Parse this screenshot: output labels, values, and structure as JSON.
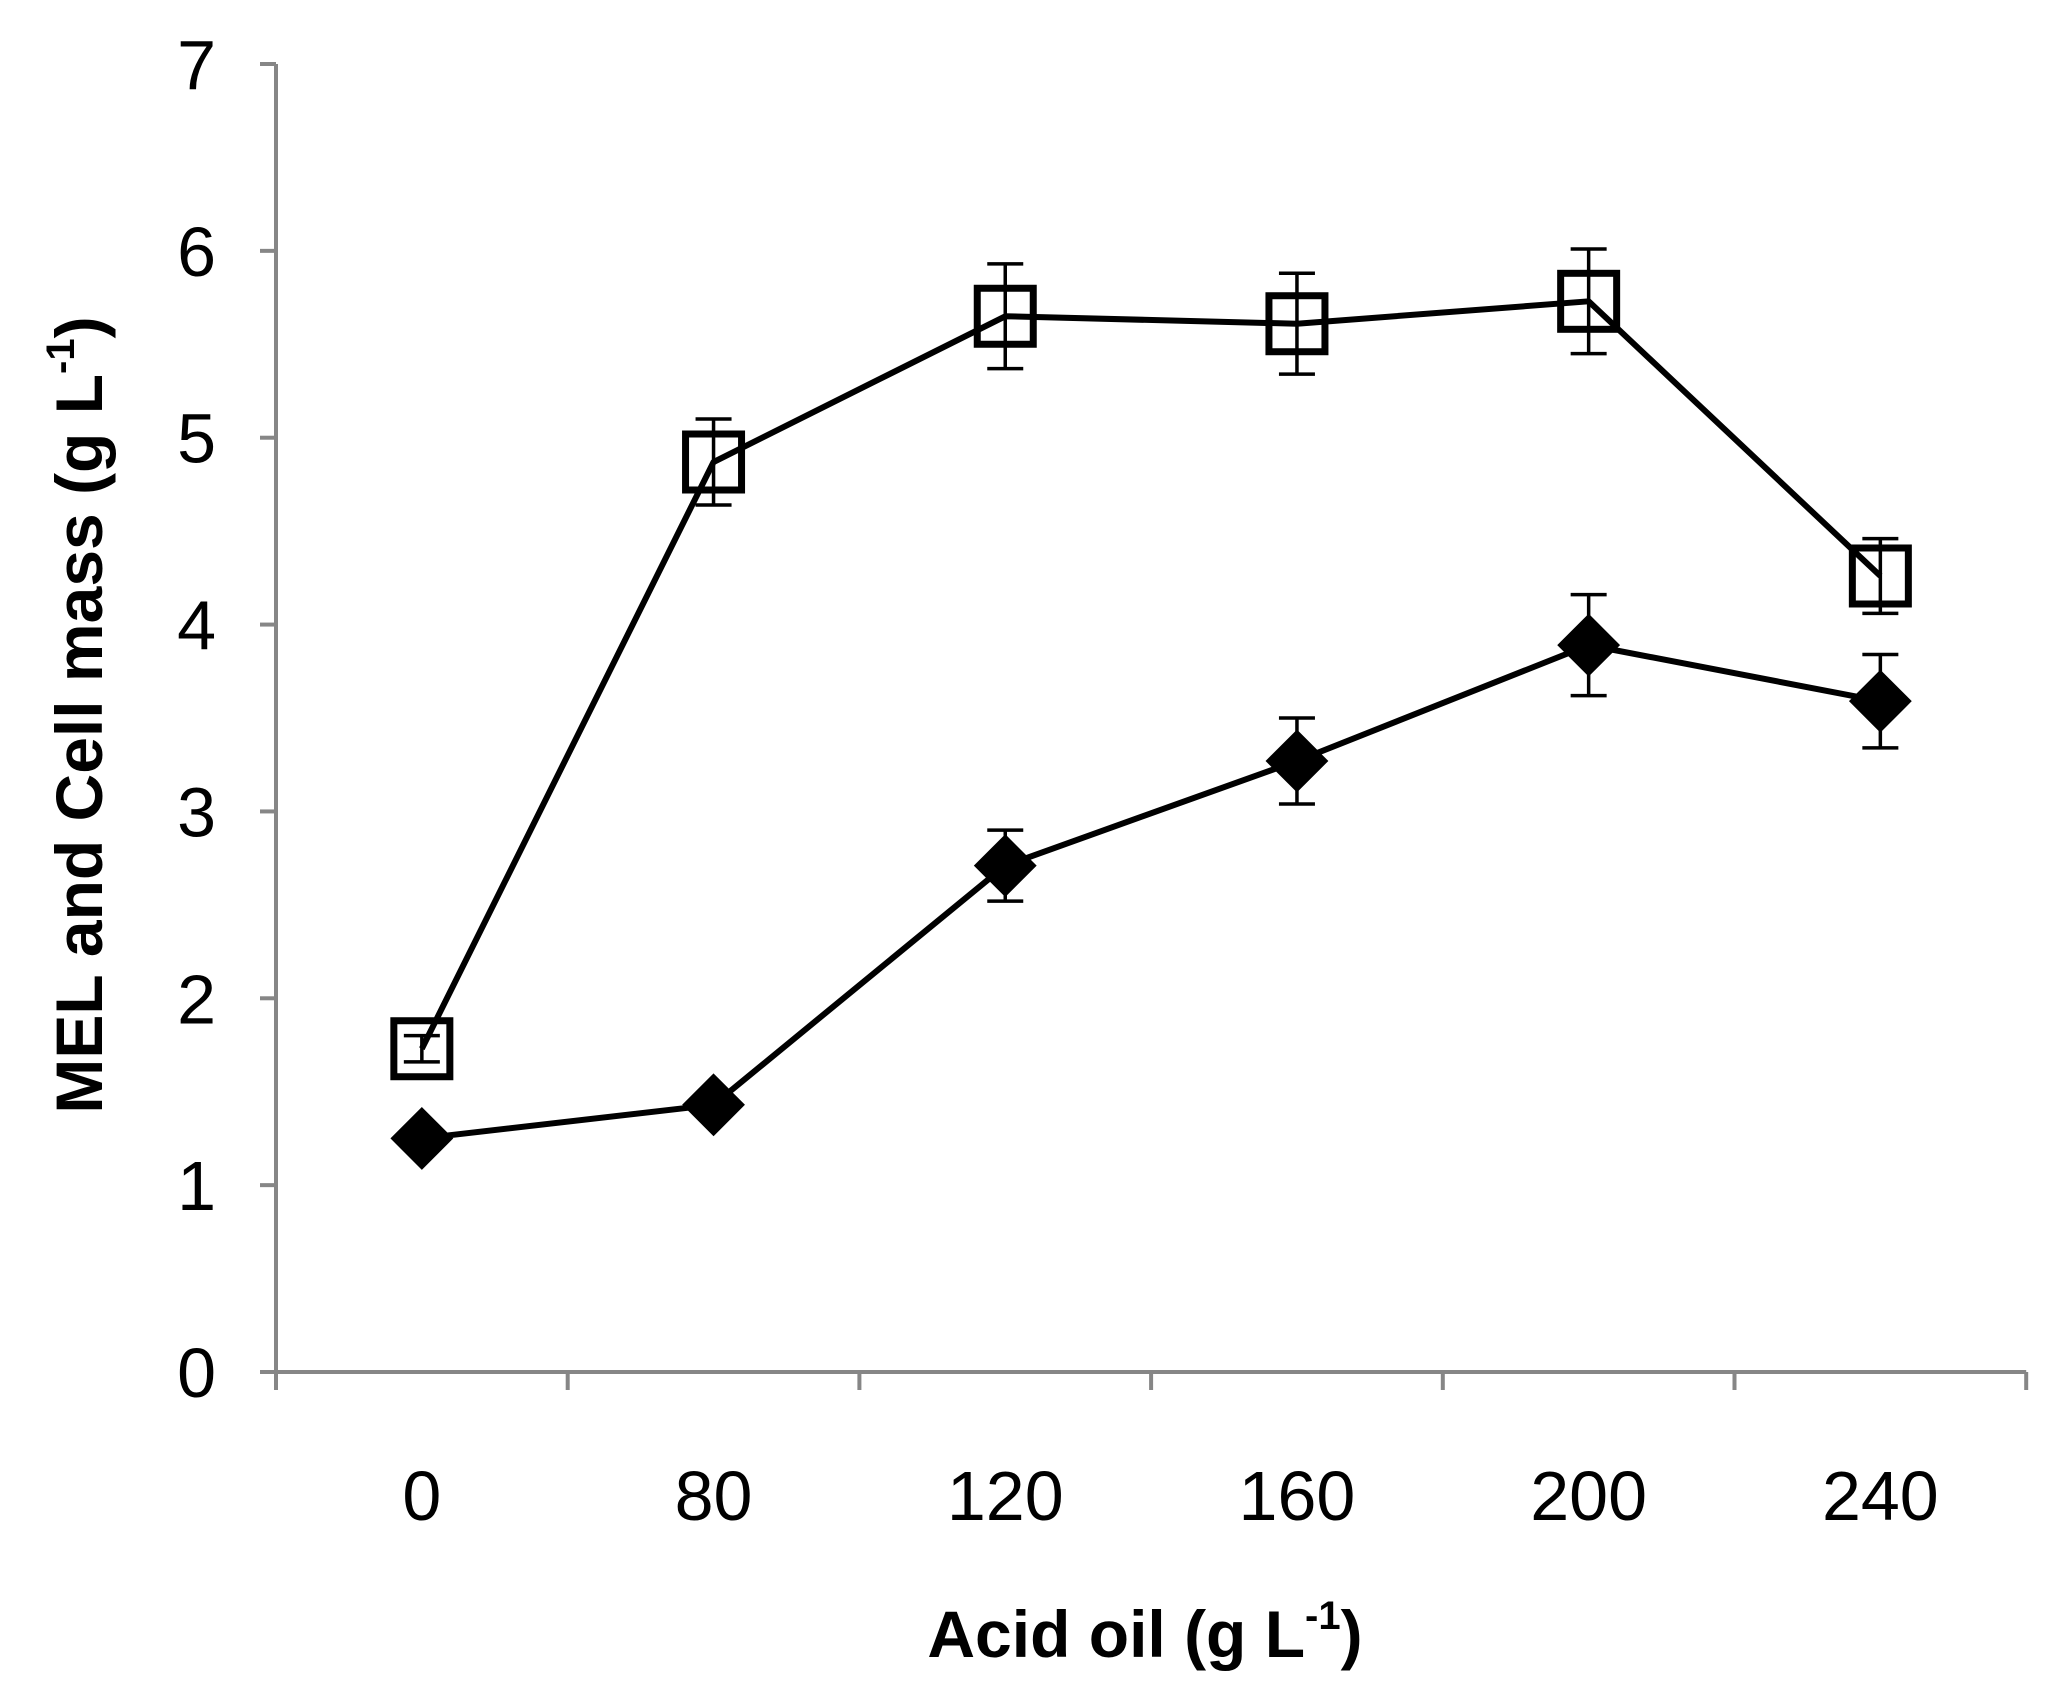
{
  "chart_data": {
    "type": "line",
    "title": "",
    "xlabel": "Acid oil (g L-1)",
    "xlabel_parts": {
      "main": "Acid oil (g L",
      "sup": "-1",
      "close": ")"
    },
    "ylabel": "MEL and Cell mass (g L-1)",
    "ylabel_parts": {
      "main": "MEL and Cell mass (g L",
      "sup": "-1",
      "close": ")"
    },
    "categories": [
      "0",
      "80",
      "120",
      "160",
      "200",
      "240"
    ],
    "ylim": [
      0,
      7
    ],
    "yticks": [
      "0",
      "1",
      "2",
      "3",
      "4",
      "5",
      "6",
      "7"
    ],
    "grid": false,
    "legend": "none",
    "series": [
      {
        "name": "open-square-series",
        "marker": "open-square",
        "values": [
          1.73,
          4.87,
          5.65,
          5.61,
          5.73,
          4.26
        ],
        "errors": [
          0.07,
          0.23,
          0.28,
          0.27,
          0.28,
          0.2
        ]
      },
      {
        "name": "filled-diamond-series",
        "marker": "filled-diamond",
        "values": [
          1.25,
          1.43,
          2.71,
          3.27,
          3.89,
          3.59
        ],
        "errors": [
          0.0,
          0.0,
          0.19,
          0.23,
          0.27,
          0.25
        ]
      }
    ],
    "colors": {
      "line": "#000000",
      "axis": "#868686",
      "marker_fill": "#000000",
      "open_fill": "#ffffff"
    }
  }
}
